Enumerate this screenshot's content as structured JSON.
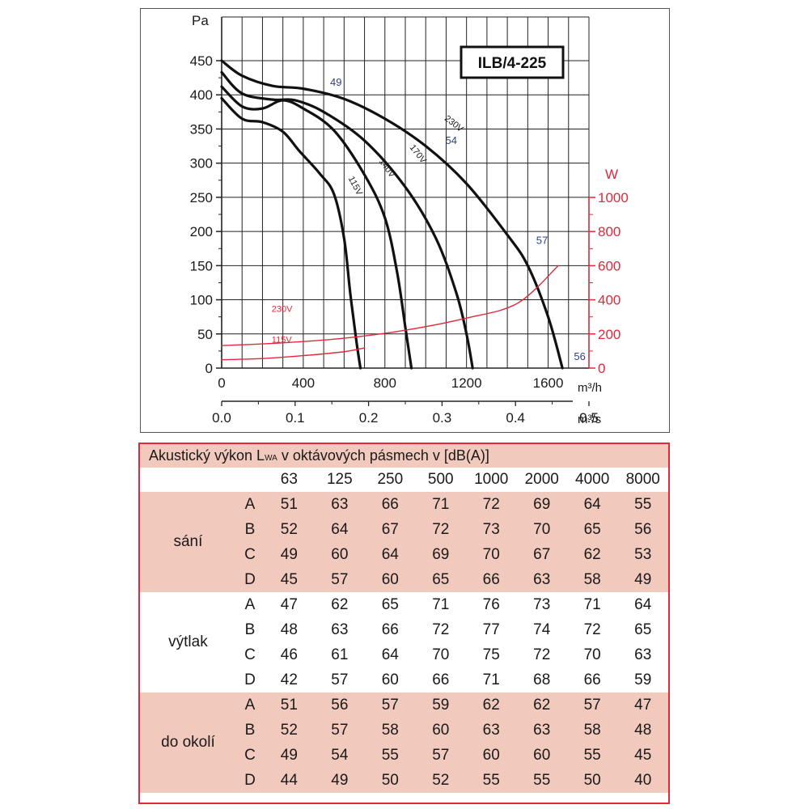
{
  "chart_data": {
    "type": "line",
    "title": "ILB/4-225",
    "y_unit": "Pa",
    "y2_unit": "W",
    "x_unit_top": "m³/h",
    "x_unit_bottom": "m³/s",
    "ylim": [
      0,
      450
    ],
    "xlim": [
      0,
      1800
    ],
    "y2lim": [
      0,
      1000
    ],
    "y_ticks": [
      "0",
      "50",
      "100",
      "150",
      "200",
      "250",
      "300",
      "350",
      "400",
      "450"
    ],
    "x_ticks_m3h": [
      "0",
      "400",
      "800",
      "1200",
      "1600"
    ],
    "x_ticks_m3s": [
      "0.0",
      "0.1",
      "0.2",
      "0.3",
      "0.4",
      "0.5"
    ],
    "y2_ticks": [
      "0",
      "200",
      "400",
      "600",
      "800",
      "1000"
    ],
    "grid": true,
    "series": [
      {
        "name": "230V",
        "axis": "pressure",
        "color": "#111111",
        "points": [
          [
            0,
            450
          ],
          [
            100,
            428
          ],
          [
            250,
            413
          ],
          [
            400,
            409
          ],
          [
            600,
            394
          ],
          [
            800,
            365
          ],
          [
            1000,
            325
          ],
          [
            1200,
            270
          ],
          [
            1400,
            195
          ],
          [
            1500,
            150
          ],
          [
            1600,
            75
          ],
          [
            1670,
            0
          ]
        ]
      },
      {
        "name": "170V",
        "axis": "pressure",
        "color": "#111111",
        "points": [
          [
            0,
            433
          ],
          [
            100,
            402
          ],
          [
            250,
            393
          ],
          [
            360,
            392
          ],
          [
            500,
            375
          ],
          [
            700,
            333
          ],
          [
            900,
            265
          ],
          [
            1050,
            190
          ],
          [
            1150,
            110
          ],
          [
            1200,
            50
          ],
          [
            1230,
            0
          ]
        ]
      },
      {
        "name": "140V",
        "axis": "pressure",
        "color": "#111111",
        "points": [
          [
            0,
            412
          ],
          [
            100,
            383
          ],
          [
            200,
            380
          ],
          [
            300,
            392
          ],
          [
            400,
            380
          ],
          [
            550,
            348
          ],
          [
            700,
            283
          ],
          [
            800,
            220
          ],
          [
            860,
            140
          ],
          [
            900,
            60
          ],
          [
            930,
            0
          ]
        ]
      },
      {
        "name": "115V",
        "axis": "pressure",
        "color": "#111111",
        "points": [
          [
            0,
            395
          ],
          [
            100,
            365
          ],
          [
            200,
            360
          ],
          [
            300,
            346
          ],
          [
            380,
            318
          ],
          [
            480,
            285
          ],
          [
            550,
            255
          ],
          [
            600,
            190
          ],
          [
            630,
            110
          ],
          [
            660,
            40
          ],
          [
            680,
            0
          ]
        ]
      },
      {
        "name": "230V",
        "axis": "power",
        "color": "#e0293a",
        "points": [
          [
            0,
            132
          ],
          [
            300,
            148
          ],
          [
            600,
            175
          ],
          [
            900,
            222
          ],
          [
            1200,
            293
          ],
          [
            1450,
            380
          ],
          [
            1650,
            600
          ]
        ]
      },
      {
        "name": "115V",
        "axis": "power",
        "color": "#e0293a",
        "points": [
          [
            0,
            49
          ],
          [
            200,
            56
          ],
          [
            400,
            73
          ],
          [
            600,
            96
          ],
          [
            700,
            118
          ]
        ]
      }
    ],
    "annotations": [
      {
        "text": "49",
        "x": 560,
        "y": 413
      },
      {
        "text": "54",
        "x": 1125,
        "y": 328
      },
      {
        "text": "57",
        "x": 1570,
        "y": 182
      },
      {
        "text": "56",
        "x": 1755,
        "y": 12
      }
    ]
  },
  "acoustic_table": {
    "title_prefix": "Akustický výkon L",
    "title_subscript": "WA",
    "title_suffix": " v oktávových pásmech v [dB(A)]",
    "bands": [
      "63",
      "125",
      "250",
      "500",
      "1000",
      "2000",
      "4000",
      "8000"
    ],
    "groups": [
      {
        "label": "sání",
        "rows": [
          {
            "id": "A",
            "values": [
              "51",
              "63",
              "66",
              "71",
              "72",
              "69",
              "64",
              "55"
            ]
          },
          {
            "id": "B",
            "values": [
              "52",
              "64",
              "67",
              "72",
              "73",
              "70",
              "65",
              "56"
            ]
          },
          {
            "id": "C",
            "values": [
              "49",
              "60",
              "64",
              "69",
              "70",
              "67",
              "62",
              "53"
            ]
          },
          {
            "id": "D",
            "values": [
              "45",
              "57",
              "60",
              "65",
              "66",
              "63",
              "58",
              "49"
            ]
          }
        ]
      },
      {
        "label": "výtlak",
        "rows": [
          {
            "id": "A",
            "values": [
              "47",
              "62",
              "65",
              "71",
              "76",
              "73",
              "71",
              "64"
            ]
          },
          {
            "id": "B",
            "values": [
              "48",
              "63",
              "66",
              "72",
              "77",
              "74",
              "72",
              "65"
            ]
          },
          {
            "id": "C",
            "values": [
              "46",
              "61",
              "64",
              "70",
              "75",
              "72",
              "70",
              "63"
            ]
          },
          {
            "id": "D",
            "values": [
              "42",
              "57",
              "60",
              "66",
              "71",
              "68",
              "66",
              "59"
            ]
          }
        ]
      },
      {
        "label": "do okolí",
        "rows": [
          {
            "id": "A",
            "values": [
              "51",
              "56",
              "57",
              "59",
              "62",
              "62",
              "57",
              "47"
            ]
          },
          {
            "id": "B",
            "values": [
              "52",
              "57",
              "58",
              "60",
              "63",
              "63",
              "58",
              "48"
            ]
          },
          {
            "id": "C",
            "values": [
              "49",
              "54",
              "55",
              "57",
              "60",
              "60",
              "55",
              "45"
            ]
          },
          {
            "id": "D",
            "values": [
              "44",
              "49",
              "50",
              "52",
              "55",
              "55",
              "50",
              "40"
            ]
          }
        ]
      }
    ],
    "colors": {
      "band_fill": "#f2c9bd",
      "border": "#e0293a"
    }
  }
}
